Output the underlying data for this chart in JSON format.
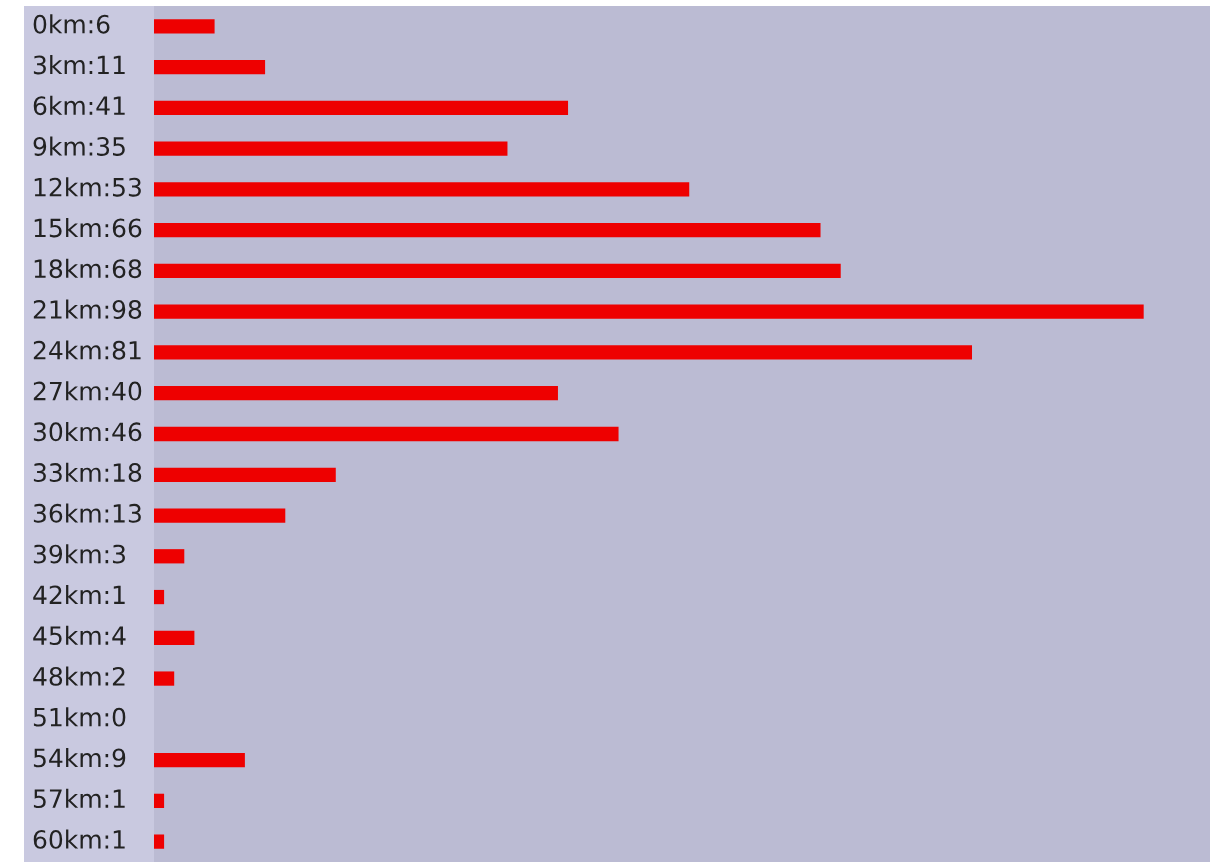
{
  "chart_data": {
    "type": "bar",
    "orientation": "horizontal",
    "categories": [
      "0km",
      "3km",
      "6km",
      "9km",
      "12km",
      "15km",
      "18km",
      "21km",
      "24km",
      "27km",
      "30km",
      "33km",
      "36km",
      "39km",
      "42km",
      "45km",
      "48km",
      "51km",
      "54km",
      "57km",
      "60km"
    ],
    "values": [
      6,
      11,
      41,
      35,
      53,
      66,
      68,
      98,
      81,
      40,
      46,
      18,
      13,
      3,
      1,
      4,
      2,
      0,
      9,
      1,
      1
    ],
    "value_labels": [
      ":6",
      ":11",
      ":41",
      ":35",
      ":53",
      ":66",
      ":68",
      ":98",
      ":81",
      ":40",
      ":46",
      ":18",
      ":13",
      ":3",
      ":1",
      ":4",
      ":2",
      ":0",
      ":9",
      ":1",
      ":1"
    ],
    "color": "#ee0000",
    "tick_labels": "y",
    "legend": false
  }
}
